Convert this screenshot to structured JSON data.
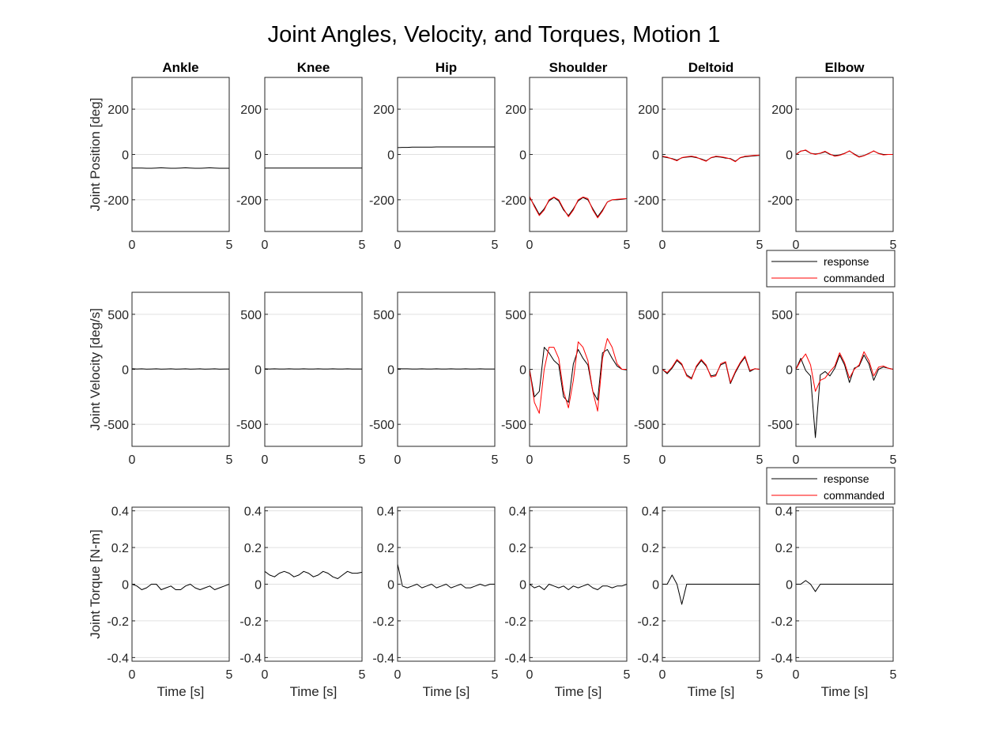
{
  "title": "Joint Angles, Velocity, and Torques, Motion 1",
  "columns": [
    "Ankle",
    "Knee",
    "Hip",
    "Shoulder",
    "Deltoid",
    "Elbow"
  ],
  "row_labels": [
    "Joint Position [deg]",
    "Joint Velocity [deg/s]",
    "Joint Torque [N-m]"
  ],
  "xlabel": "Time [s]",
  "x_ticks": [
    "0",
    "5"
  ],
  "legend": {
    "response": "response",
    "commanded": "commanded"
  },
  "colors": {
    "response": "#000000",
    "commanded": "#ff0000",
    "grid": "#e0e0e0",
    "axis": "#262626"
  },
  "chart_data": [
    {
      "type": "line",
      "row": "Joint Position [deg]",
      "xlim": [
        0,
        5
      ],
      "ylim": [
        -340,
        340
      ],
      "yticks": [
        -200,
        0,
        200
      ],
      "ytick_labels": [
        "-200",
        "0",
        "200"
      ],
      "grid": true,
      "x": [
        0,
        0.25,
        0.5,
        0.75,
        1,
        1.25,
        1.5,
        1.75,
        2,
        2.25,
        2.5,
        2.75,
        3,
        3.25,
        3.5,
        3.75,
        4,
        4.25,
        4.5,
        4.75,
        5
      ],
      "panels": [
        {
          "column": "Ankle",
          "series": [
            {
              "name": "response",
              "values": [
                -60,
                -60,
                -60,
                -61,
                -61,
                -60,
                -59,
                -60,
                -61,
                -61,
                -60,
                -59,
                -60,
                -61,
                -61,
                -60,
                -59,
                -60,
                -61,
                -61,
                -61
              ]
            }
          ]
        },
        {
          "column": "Knee",
          "series": [
            {
              "name": "response",
              "values": [
                -60,
                -60,
                -60,
                -60,
                -60,
                -60,
                -60,
                -60,
                -60,
                -60,
                -60,
                -60,
                -60,
                -60,
                -60,
                -60,
                -60,
                -60,
                -60,
                -60,
                -60
              ]
            }
          ]
        },
        {
          "column": "Hip",
          "series": [
            {
              "name": "response",
              "values": [
                30,
                31,
                31,
                32,
                32,
                32,
                32,
                32,
                33,
                33,
                33,
                33,
                33,
                33,
                33,
                33,
                33,
                33,
                33,
                33,
                33
              ]
            }
          ]
        },
        {
          "column": "Shoulder",
          "series": [
            {
              "name": "response",
              "values": [
                -190,
                -225,
                -265,
                -240,
                -205,
                -190,
                -205,
                -245,
                -270,
                -240,
                -205,
                -190,
                -200,
                -240,
                -275,
                -245,
                -210,
                -200,
                -200,
                -198,
                -195
              ]
            },
            {
              "name": "commanded",
              "values": [
                -185,
                -230,
                -270,
                -245,
                -200,
                -188,
                -200,
                -240,
                -275,
                -245,
                -200,
                -188,
                -195,
                -245,
                -280,
                -250,
                -210,
                -200,
                -198,
                -196,
                -195
              ]
            }
          ]
        },
        {
          "column": "Deltoid",
          "series": [
            {
              "name": "response",
              "values": [
                -10,
                -14,
                -18,
                -25,
                -15,
                -12,
                -10,
                -14,
                -20,
                -28,
                -15,
                -10,
                -12,
                -16,
                -18,
                -30,
                -15,
                -10,
                -8,
                -6,
                -4
              ]
            },
            {
              "name": "commanded",
              "values": [
                -8,
                -12,
                -20,
                -28,
                -14,
                -10,
                -8,
                -12,
                -22,
                -30,
                -14,
                -8,
                -10,
                -14,
                -20,
                -32,
                -14,
                -8,
                -6,
                -4,
                -3
              ]
            }
          ]
        },
        {
          "column": "Elbow",
          "series": [
            {
              "name": "response",
              "values": [
                0,
                15,
                18,
                5,
                2,
                5,
                12,
                0,
                -5,
                -2,
                5,
                15,
                2,
                -10,
                -5,
                5,
                15,
                5,
                0,
                0,
                0
              ]
            },
            {
              "name": "commanded",
              "values": [
                0,
                14,
                20,
                6,
                0,
                6,
                14,
                2,
                -8,
                -4,
                4,
                16,
                0,
                -12,
                -6,
                4,
                16,
                4,
                -2,
                0,
                0
              ]
            }
          ]
        }
      ]
    },
    {
      "type": "line",
      "row": "Joint Velocity [deg/s]",
      "xlim": [
        0,
        5
      ],
      "ylim": [
        -700,
        700
      ],
      "yticks": [
        -500,
        0,
        500
      ],
      "ytick_labels": [
        "-500",
        "0",
        "500"
      ],
      "grid": true,
      "x": [
        0,
        0.25,
        0.5,
        0.75,
        1,
        1.25,
        1.5,
        1.75,
        2,
        2.25,
        2.5,
        2.75,
        3,
        3.25,
        3.5,
        3.75,
        4,
        4.25,
        4.5,
        4.75,
        5
      ],
      "panels": [
        {
          "column": "Ankle",
          "series": [
            {
              "name": "response",
              "values": [
                5,
                3,
                4,
                2,
                3,
                4,
                2,
                3,
                4,
                2,
                3,
                4,
                2,
                3,
                4,
                2,
                3,
                4,
                2,
                3,
                3
              ]
            }
          ]
        },
        {
          "column": "Knee",
          "series": [
            {
              "name": "response",
              "values": [
                4,
                3,
                4,
                3,
                3,
                4,
                3,
                3,
                4,
                3,
                3,
                4,
                3,
                3,
                4,
                3,
                3,
                4,
                3,
                3,
                3
              ]
            }
          ]
        },
        {
          "column": "Hip",
          "series": [
            {
              "name": "response",
              "values": [
                5,
                4,
                4,
                3,
                3,
                4,
                3,
                3,
                4,
                3,
                3,
                4,
                3,
                3,
                4,
                3,
                3,
                4,
                3,
                3,
                3
              ]
            }
          ]
        },
        {
          "column": "Shoulder",
          "series": [
            {
              "name": "response",
              "values": [
                0,
                -250,
                -200,
                200,
                150,
                80,
                40,
                -250,
                -300,
                50,
                180,
                100,
                40,
                -200,
                -280,
                150,
                180,
                100,
                30,
                0,
                -5
              ]
            },
            {
              "name": "commanded",
              "values": [
                0,
                -300,
                -400,
                0,
                200,
                200,
                100,
                -200,
                -350,
                -100,
                250,
                200,
                80,
                -200,
                -380,
                100,
                280,
                200,
                50,
                0,
                0
              ]
            }
          ]
        },
        {
          "column": "Deltoid",
          "series": [
            {
              "name": "response",
              "values": [
                0,
                -40,
                10,
                80,
                40,
                -50,
                -80,
                20,
                80,
                30,
                -60,
                -50,
                40,
                60,
                -130,
                -30,
                50,
                110,
                -20,
                5,
                0
              ]
            },
            {
              "name": "commanded",
              "values": [
                0,
                -30,
                20,
                90,
                50,
                -60,
                -90,
                30,
                90,
                40,
                -70,
                -60,
                50,
                70,
                -120,
                -20,
                60,
                120,
                -10,
                5,
                0
              ]
            }
          ]
        },
        {
          "column": "Elbow",
          "series": [
            {
              "name": "response",
              "values": [
                0,
                100,
                -10,
                -60,
                -620,
                -50,
                -20,
                -60,
                10,
                130,
                40,
                -120,
                10,
                30,
                130,
                50,
                -100,
                0,
                20,
                10,
                0
              ]
            },
            {
              "name": "commanded",
              "values": [
                0,
                80,
                140,
                40,
                -200,
                -100,
                -80,
                -20,
                30,
                150,
                60,
                -80,
                0,
                40,
                160,
                80,
                -60,
                20,
                30,
                10,
                0
              ]
            }
          ]
        }
      ]
    },
    {
      "type": "line",
      "row": "Joint Torque [N-m]",
      "xlim": [
        0,
        5
      ],
      "ylim": [
        -0.42,
        0.42
      ],
      "yticks": [
        -0.4,
        -0.2,
        0,
        0.2,
        0.4
      ],
      "ytick_labels": [
        "-0.4",
        "-0.2",
        "0",
        "0.2",
        "0.4"
      ],
      "grid": true,
      "x": [
        0,
        0.25,
        0.5,
        0.75,
        1,
        1.25,
        1.5,
        1.75,
        2,
        2.25,
        2.5,
        2.75,
        3,
        3.25,
        3.5,
        3.75,
        4,
        4.25,
        4.5,
        4.75,
        5
      ],
      "panels": [
        {
          "column": "Ankle",
          "series": [
            {
              "name": "response",
              "values": [
                0.0,
                -0.01,
                -0.03,
                -0.02,
                0.0,
                0.0,
                -0.03,
                -0.02,
                -0.01,
                -0.03,
                -0.03,
                -0.01,
                0.0,
                -0.02,
                -0.03,
                -0.02,
                -0.01,
                -0.03,
                -0.02,
                -0.01,
                0.0
              ]
            }
          ]
        },
        {
          "column": "Knee",
          "series": [
            {
              "name": "response",
              "values": [
                0.07,
                0.05,
                0.04,
                0.06,
                0.07,
                0.06,
                0.04,
                0.05,
                0.07,
                0.06,
                0.04,
                0.05,
                0.07,
                0.06,
                0.04,
                0.03,
                0.05,
                0.07,
                0.06,
                0.06,
                0.065
              ]
            }
          ]
        },
        {
          "column": "Hip",
          "series": [
            {
              "name": "response",
              "values": [
                0.11,
                -0.01,
                -0.02,
                -0.01,
                0.0,
                -0.02,
                -0.01,
                0.0,
                -0.02,
                -0.01,
                0.0,
                -0.02,
                -0.01,
                0.0,
                -0.02,
                -0.02,
                -0.01,
                0.0,
                -0.01,
                0.0,
                0.0
              ]
            }
          ]
        },
        {
          "column": "Shoulder",
          "series": [
            {
              "name": "response",
              "values": [
                0.0,
                -0.02,
                -0.01,
                -0.03,
                0.0,
                -0.01,
                -0.02,
                -0.01,
                -0.03,
                -0.01,
                -0.02,
                -0.01,
                0.0,
                -0.02,
                -0.03,
                -0.01,
                -0.01,
                -0.02,
                -0.01,
                -0.01,
                0.0
              ]
            }
          ]
        },
        {
          "column": "Deltoid",
          "series": [
            {
              "name": "response",
              "values": [
                0.0,
                0.0,
                0.05,
                0.0,
                -0.11,
                0.0,
                0.0,
                0.0,
                0.0,
                0.0,
                0.0,
                0.0,
                0.0,
                0.0,
                0.0,
                0.0,
                0.0,
                0.0,
                0.0,
                0.0,
                0.0
              ]
            }
          ]
        },
        {
          "column": "Elbow",
          "series": [
            {
              "name": "response",
              "values": [
                0.0,
                0.0,
                0.02,
                0.0,
                -0.04,
                0.0,
                0.0,
                0.0,
                0.0,
                0.0,
                0.0,
                0.0,
                0.0,
                0.0,
                0.0,
                0.0,
                0.0,
                0.0,
                0.0,
                0.0,
                0.0
              ]
            }
          ]
        }
      ]
    }
  ]
}
